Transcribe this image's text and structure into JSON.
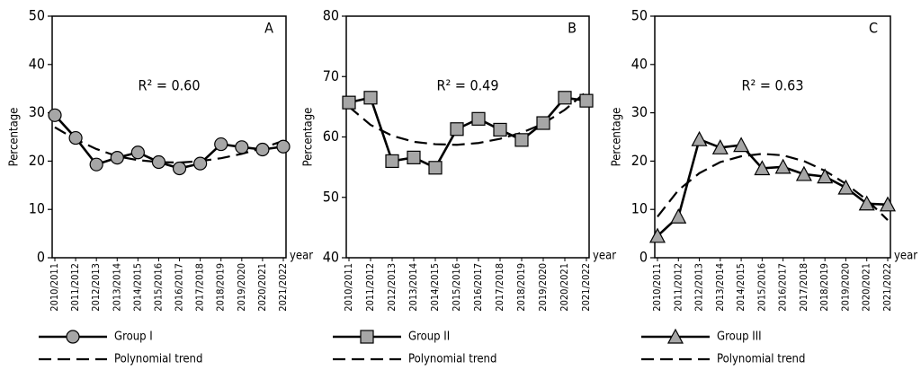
{
  "chart_data": [
    {
      "type": "line",
      "panel_label": "A",
      "annotation": "R² = 0.60",
      "ylabel": "Percentage",
      "xlabel": "year",
      "categories": [
        "2010/2011",
        "2011/2012",
        "2012/2013",
        "2013/2014",
        "2014/2015",
        "2015/2016",
        "2016/2017",
        "2017/2018",
        "2018/2019",
        "2019/2020",
        "2020/2021",
        "2021/2022"
      ],
      "ylim": [
        0,
        50
      ],
      "yticks": [
        0,
        10,
        20,
        30,
        40,
        50
      ],
      "series": [
        {
          "name": "Group I",
          "color": "#a6a6a6",
          "marker": "circle",
          "line_style": "solid",
          "values": [
            29.5,
            24.8,
            19.3,
            20.7,
            21.8,
            19.8,
            18.5,
            19.5,
            23.5,
            22.9,
            22.4,
            23.0
          ]
        },
        {
          "name": "Polynomial trend",
          "color": "#000000",
          "line_style": "dashed",
          "values": [
            27.0,
            24.5,
            22.5,
            21.0,
            20.2,
            19.8,
            19.7,
            20.0,
            20.6,
            21.5,
            22.7,
            24.2
          ]
        }
      ]
    },
    {
      "type": "line",
      "panel_label": "B",
      "annotation": "R² = 0.49",
      "ylabel": "Percentage",
      "xlabel": "year",
      "categories": [
        "2010/2011",
        "2011/2012",
        "2012/2013",
        "2013/2014",
        "2014/2015",
        "2015/2016",
        "2016/2017",
        "2017/2018",
        "2018/2019",
        "2019/2020",
        "2020/2021",
        "2021/2022"
      ],
      "ylim": [
        40,
        80
      ],
      "yticks": [
        40,
        50,
        60,
        70,
        80
      ],
      "series": [
        {
          "name": "Group II",
          "color": "#a6a6a6",
          "marker": "square",
          "line_style": "solid",
          "values": [
            65.7,
            66.5,
            56.0,
            56.6,
            54.9,
            61.3,
            63.0,
            61.2,
            59.5,
            62.3,
            66.5,
            66.0
          ]
        },
        {
          "name": "Polynomial trend",
          "color": "#000000",
          "line_style": "dashed",
          "values": [
            65.0,
            62.0,
            60.2,
            59.2,
            58.8,
            58.7,
            59.0,
            59.7,
            60.7,
            62.2,
            64.5,
            67.5
          ]
        }
      ]
    },
    {
      "type": "line",
      "panel_label": "C",
      "annotation": "R² = 0.63",
      "ylabel": "Percentage",
      "xlabel": "year",
      "categories": [
        "2010/2011",
        "2011/2012",
        "2012/2013",
        "2013/2014",
        "2014/2015",
        "2015/2016",
        "2016/2017",
        "2017/2018",
        "2018/2019",
        "2019/2020",
        "2020/2021",
        "2021/2022"
      ],
      "ylim": [
        0,
        50
      ],
      "yticks": [
        0,
        10,
        20,
        30,
        40,
        50
      ],
      "series": [
        {
          "name": "Group III",
          "color": "#a6a6a6",
          "marker": "triangle",
          "line_style": "solid",
          "values": [
            4.5,
            8.5,
            24.5,
            22.8,
            23.3,
            18.5,
            18.8,
            17.3,
            16.8,
            14.5,
            11.2,
            11.0
          ]
        },
        {
          "name": "Polynomial trend",
          "color": "#000000",
          "line_style": "dashed",
          "values": [
            8.5,
            14.0,
            17.5,
            19.8,
            21.0,
            21.5,
            21.2,
            20.0,
            18.0,
            15.3,
            12.0,
            7.8
          ]
        }
      ]
    }
  ]
}
